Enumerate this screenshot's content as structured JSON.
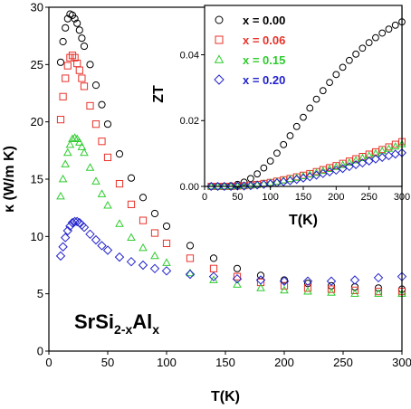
{
  "chart_data": [
    {
      "type": "scatter",
      "xlabel": "T(K)",
      "ylabel": "κ (W/m K)",
      "xlim": [
        0,
        300
      ],
      "ylim": [
        0,
        30
      ],
      "xticks": [
        "0",
        "50",
        "100",
        "150",
        "200",
        "250",
        "300"
      ],
      "yticks": [
        "0",
        "5",
        "10",
        "15",
        "20",
        "25",
        "30"
      ],
      "annotation": {
        "base": "SrSi",
        "sub1": "2-x",
        "mid": "Al",
        "sub2": "x"
      },
      "series": [
        {
          "name": "x = 0.00",
          "color": "#000000",
          "marker": "circle",
          "x": [
            10,
            12,
            14,
            16,
            18,
            20,
            22,
            24,
            26,
            28,
            30,
            35,
            40,
            45,
            50,
            60,
            70,
            80,
            90,
            100,
            120,
            140,
            160,
            180,
            200,
            220,
            240,
            260,
            280,
            300
          ],
          "y": [
            25.2,
            27.0,
            28.2,
            29.0,
            29.4,
            29.3,
            29.0,
            28.6,
            28.0,
            27.3,
            26.6,
            25.0,
            23.2,
            21.5,
            19.8,
            17.2,
            15.1,
            13.4,
            12.0,
            10.9,
            9.2,
            8.1,
            7.2,
            6.6,
            6.2,
            5.9,
            5.7,
            5.6,
            5.5,
            5.4
          ]
        },
        {
          "name": "x = 0.06",
          "color": "#e8322a",
          "marker": "square",
          "x": [
            10,
            12,
            14,
            16,
            18,
            20,
            22,
            24,
            26,
            28,
            30,
            35,
            40,
            45,
            50,
            60,
            70,
            80,
            90,
            100,
            120,
            140,
            160,
            180,
            200,
            220,
            240,
            260,
            280,
            300
          ],
          "y": [
            20.2,
            22.2,
            23.8,
            24.9,
            25.6,
            25.8,
            25.6,
            25.1,
            24.5,
            23.8,
            23.1,
            21.4,
            19.8,
            18.3,
            16.9,
            14.6,
            12.8,
            11.4,
            10.3,
            9.4,
            8.1,
            7.2,
            6.5,
            6.0,
            5.7,
            5.5,
            5.4,
            5.3,
            5.2,
            5.2
          ]
        },
        {
          "name": "x = 0.15",
          "color": "#2ecc2e",
          "marker": "triangle",
          "x": [
            10,
            12,
            14,
            16,
            18,
            20,
            22,
            24,
            26,
            28,
            30,
            35,
            40,
            45,
            50,
            60,
            70,
            80,
            90,
            100,
            120,
            140,
            160,
            180,
            200,
            220,
            240,
            260,
            280,
            300
          ],
          "y": [
            13.5,
            15.0,
            16.3,
            17.3,
            18.0,
            18.5,
            18.6,
            18.5,
            18.2,
            17.8,
            17.3,
            16.0,
            14.8,
            13.7,
            12.7,
            11.1,
            9.9,
            9.0,
            8.3,
            7.7,
            6.8,
            6.2,
            5.8,
            5.5,
            5.3,
            5.2,
            5.1,
            5.0,
            5.0,
            5.0
          ]
        },
        {
          "name": "x = 0.20",
          "color": "#2222cc",
          "marker": "diamond",
          "x": [
            10,
            12,
            14,
            16,
            18,
            20,
            22,
            24,
            26,
            28,
            30,
            35,
            40,
            45,
            50,
            60,
            70,
            80,
            90,
            100,
            120,
            140,
            160,
            180,
            200,
            220,
            240,
            260,
            280,
            300
          ],
          "y": [
            8.3,
            9.1,
            9.9,
            10.5,
            10.9,
            11.2,
            11.3,
            11.3,
            11.2,
            11.0,
            10.8,
            10.2,
            9.7,
            9.2,
            8.8,
            8.2,
            7.8,
            7.5,
            7.2,
            7.0,
            6.7,
            6.5,
            6.3,
            6.2,
            6.1,
            6.1,
            6.1,
            6.2,
            6.4,
            6.5
          ]
        }
      ]
    },
    {
      "type": "scatter",
      "xlabel": "T(K)",
      "ylabel": "ZT",
      "xlim": [
        0,
        300
      ],
      "ylim": [
        0,
        0.055
      ],
      "xticks": [
        "0",
        "50",
        "100",
        "150",
        "200",
        "250",
        "300"
      ],
      "yticks": [
        "0.00",
        "0.02",
        "0.04"
      ],
      "series": [
        {
          "name": "x = 0.00",
          "color": "#000000",
          "marker": "circle",
          "x": [
            10,
            20,
            30,
            40,
            50,
            60,
            70,
            80,
            90,
            100,
            110,
            120,
            130,
            140,
            150,
            160,
            170,
            180,
            190,
            200,
            210,
            220,
            230,
            240,
            250,
            260,
            270,
            280,
            290,
            300
          ],
          "y": [
            0.0,
            0.0,
            0.0,
            0.0002,
            0.0006,
            0.0013,
            0.0024,
            0.0038,
            0.0056,
            0.0077,
            0.0101,
            0.0127,
            0.0154,
            0.0182,
            0.021,
            0.0238,
            0.0265,
            0.0291,
            0.0316,
            0.034,
            0.0362,
            0.0383,
            0.0402,
            0.042,
            0.0437,
            0.0452,
            0.0466,
            0.0478,
            0.049,
            0.05
          ]
        },
        {
          "name": "x = 0.06",
          "color": "#e8322a",
          "marker": "square",
          "x": [
            10,
            20,
            30,
            40,
            50,
            60,
            70,
            80,
            90,
            100,
            110,
            120,
            130,
            140,
            150,
            160,
            170,
            180,
            190,
            200,
            210,
            220,
            230,
            240,
            250,
            260,
            270,
            280,
            290,
            300
          ],
          "y": [
            0.0,
            0.0,
            0.0,
            0.0,
            0.0001,
            0.0002,
            0.0004,
            0.0006,
            0.0009,
            0.0012,
            0.0016,
            0.002,
            0.0024,
            0.0029,
            0.0034,
            0.0039,
            0.0045,
            0.0051,
            0.0057,
            0.0063,
            0.007,
            0.0077,
            0.0084,
            0.0091,
            0.0098,
            0.0105,
            0.0112,
            0.012,
            0.0128,
            0.0136
          ]
        },
        {
          "name": "x = 0.15",
          "color": "#2ecc2e",
          "marker": "triangle",
          "x": [
            10,
            20,
            30,
            40,
            50,
            60,
            70,
            80,
            90,
            100,
            110,
            120,
            130,
            140,
            150,
            160,
            170,
            180,
            190,
            200,
            210,
            220,
            230,
            240,
            250,
            260,
            270,
            280,
            290,
            300
          ],
          "y": [
            0.0,
            0.0,
            0.0,
            0.0,
            0.0001,
            0.0002,
            0.0003,
            0.0005,
            0.0008,
            0.0011,
            0.0014,
            0.0018,
            0.0022,
            0.0026,
            0.0031,
            0.0036,
            0.0041,
            0.0047,
            0.0053,
            0.0059,
            0.0065,
            0.0072,
            0.0079,
            0.0086,
            0.0093,
            0.01,
            0.0107,
            0.0114,
            0.0121,
            0.0128
          ]
        },
        {
          "name": "x = 0.20",
          "color": "#2222cc",
          "marker": "diamond",
          "x": [
            10,
            20,
            30,
            40,
            50,
            60,
            70,
            80,
            90,
            100,
            110,
            120,
            130,
            140,
            150,
            160,
            170,
            180,
            190,
            200,
            210,
            220,
            230,
            240,
            250,
            260,
            270,
            280,
            290,
            300
          ],
          "y": [
            0.0,
            0.0,
            0.0,
            0.0,
            0.0001,
            0.0001,
            0.0002,
            0.0004,
            0.0006,
            0.0008,
            0.0011,
            0.0014,
            0.0017,
            0.0021,
            0.0025,
            0.0029,
            0.0034,
            0.0039,
            0.0044,
            0.0049,
            0.0054,
            0.006,
            0.0066,
            0.0071,
            0.0077,
            0.0083,
            0.0088,
            0.0093,
            0.0098,
            0.0102
          ]
        }
      ]
    }
  ]
}
